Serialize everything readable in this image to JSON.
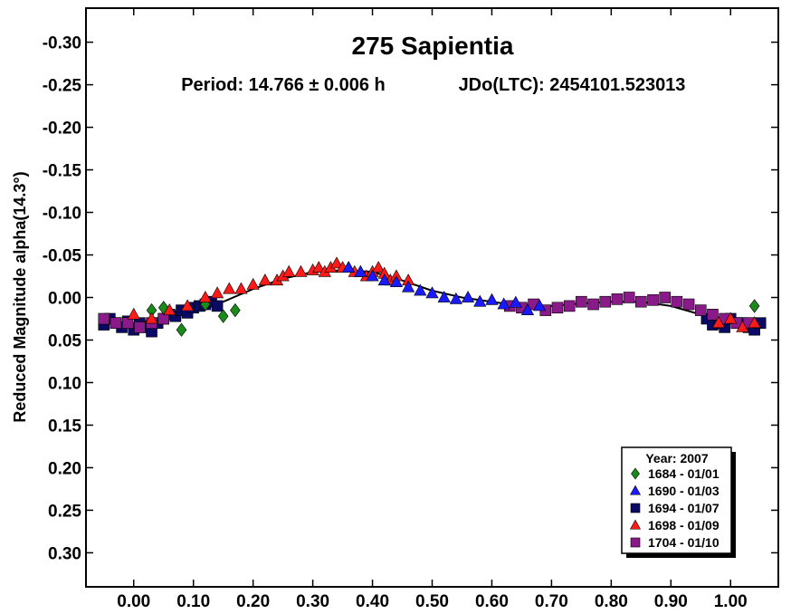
{
  "chart_data": {
    "type": "scatter",
    "title": "275 Sapientia",
    "subtitle_period": "Period: 14.766 ± 0.006 h",
    "subtitle_epoch": "JDo(LTC): 2454101.523013",
    "xlabel": "",
    "ylabel": "Reduced Magnitude alpha(14.3°)",
    "xlim": [
      -0.08,
      1.08
    ],
    "ylim": [
      -0.34,
      0.34
    ],
    "y_inverted": true,
    "x_ticks": [
      "0.00",
      "0.10",
      "0.20",
      "0.30",
      "0.40",
      "0.50",
      "0.60",
      "0.70",
      "0.80",
      "0.90",
      "1.00"
    ],
    "x_tick_values": [
      0.0,
      0.1,
      0.2,
      0.3,
      0.4,
      0.5,
      0.6,
      0.7,
      0.8,
      0.9,
      1.0
    ],
    "y_ticks": [
      "-0.30",
      "-0.25",
      "-0.20",
      "-0.15",
      "-0.10",
      "-0.05",
      "0.00",
      "0.05",
      "0.10",
      "0.15",
      "0.20",
      "0.25",
      "0.30"
    ],
    "y_tick_values": [
      -0.3,
      -0.25,
      -0.2,
      -0.15,
      -0.1,
      -0.05,
      0.0,
      0.05,
      0.1,
      0.15,
      0.2,
      0.25,
      0.3
    ],
    "grid": false,
    "legend_position": "bottom-right",
    "legend_title": "Year: 2007",
    "fit_curve": {
      "color": "#000000",
      "x": [
        -0.05,
        0.0,
        0.05,
        0.1,
        0.15,
        0.2,
        0.25,
        0.3,
        0.35,
        0.4,
        0.45,
        0.5,
        0.55,
        0.6,
        0.65,
        0.7,
        0.75,
        0.8,
        0.85,
        0.9,
        0.95,
        1.0,
        1.05
      ],
      "y": [
        0.03,
        0.03,
        0.025,
        0.015,
        0.005,
        -0.01,
        -0.022,
        -0.03,
        -0.032,
        -0.03,
        -0.02,
        -0.008,
        0.0,
        0.005,
        0.01,
        0.01,
        0.007,
        0.005,
        0.005,
        0.01,
        0.02,
        0.03,
        0.03
      ]
    },
    "series": [
      {
        "name": "1684 - 01/01",
        "marker": "diamond",
        "color": "#1a8a1a",
        "x": [
          0.03,
          0.05,
          0.08,
          0.12,
          0.15,
          0.17,
          1.04
        ],
        "y": [
          0.015,
          0.012,
          0.038,
          0.008,
          0.022,
          0.015,
          0.01
        ]
      },
      {
        "name": "1690 - 01/03",
        "marker": "triangle",
        "color": "#1a1aff",
        "x": [
          0.36,
          0.38,
          0.4,
          0.42,
          0.44,
          0.46,
          0.48,
          0.5,
          0.52,
          0.54,
          0.56,
          0.58,
          0.6,
          0.62,
          0.64,
          0.66,
          0.68
        ],
        "y": [
          -0.035,
          -0.03,
          -0.025,
          -0.02,
          -0.018,
          -0.012,
          -0.008,
          -0.005,
          0.0,
          0.002,
          0.0,
          0.005,
          0.003,
          0.008,
          0.006,
          0.015,
          0.01
        ]
      },
      {
        "name": "1694 - 01/07",
        "marker": "square",
        "color": "#0a0a66",
        "x": [
          -0.05,
          -0.04,
          -0.03,
          -0.02,
          -0.01,
          0.0,
          0.01,
          0.02,
          0.03,
          0.04,
          0.05,
          0.06,
          0.07,
          0.08,
          0.09,
          0.1,
          0.11,
          0.12,
          0.13,
          0.14,
          0.96,
          0.97,
          0.98,
          0.99,
          1.0,
          1.01,
          1.02,
          1.03,
          1.04,
          1.05
        ],
        "y": [
          0.032,
          0.025,
          0.03,
          0.035,
          0.028,
          0.038,
          0.03,
          0.035,
          0.04,
          0.03,
          0.025,
          0.02,
          0.022,
          0.015,
          0.018,
          0.012,
          0.01,
          0.008,
          0.005,
          0.01,
          0.025,
          0.032,
          0.03,
          0.035,
          0.025,
          0.03,
          0.03,
          0.035,
          0.038,
          0.03
        ]
      },
      {
        "name": "1698 - 01/09",
        "marker": "triangle",
        "color": "#ff1a1a",
        "x": [
          0.0,
          0.03,
          0.06,
          0.09,
          0.12,
          0.14,
          0.16,
          0.18,
          0.2,
          0.22,
          0.24,
          0.25,
          0.26,
          0.28,
          0.3,
          0.31,
          0.32,
          0.33,
          0.34,
          0.35,
          0.36,
          0.37,
          0.38,
          0.39,
          0.4,
          0.41,
          0.42,
          0.43,
          0.44,
          0.46,
          0.98,
          1.0,
          1.02,
          1.04
        ],
        "y": [
          0.02,
          0.025,
          0.015,
          0.01,
          0.0,
          -0.005,
          -0.01,
          -0.01,
          -0.015,
          -0.02,
          -0.02,
          -0.025,
          -0.03,
          -0.03,
          -0.032,
          -0.035,
          -0.03,
          -0.035,
          -0.04,
          -0.035,
          -0.035,
          -0.03,
          -0.03,
          -0.025,
          -0.03,
          -0.035,
          -0.028,
          -0.02,
          -0.025,
          -0.02,
          0.03,
          0.025,
          0.035,
          0.03
        ]
      },
      {
        "name": "1704 - 01/10",
        "marker": "square",
        "color": "#8a1a8a",
        "x": [
          -0.05,
          -0.03,
          -0.01,
          0.01,
          0.03,
          0.05,
          0.63,
          0.65,
          0.67,
          0.69,
          0.71,
          0.73,
          0.75,
          0.77,
          0.79,
          0.81,
          0.83,
          0.85,
          0.87,
          0.89,
          0.91,
          0.93,
          0.95,
          0.97,
          0.99,
          1.01,
          1.03
        ],
        "y": [
          0.025,
          0.03,
          0.03,
          0.035,
          0.03,
          0.025,
          0.01,
          0.012,
          0.008,
          0.015,
          0.012,
          0.01,
          0.005,
          0.008,
          0.005,
          0.002,
          0.0,
          0.005,
          0.003,
          0.0,
          0.005,
          0.008,
          0.015,
          0.02,
          0.025,
          0.03,
          0.03
        ]
      }
    ]
  }
}
